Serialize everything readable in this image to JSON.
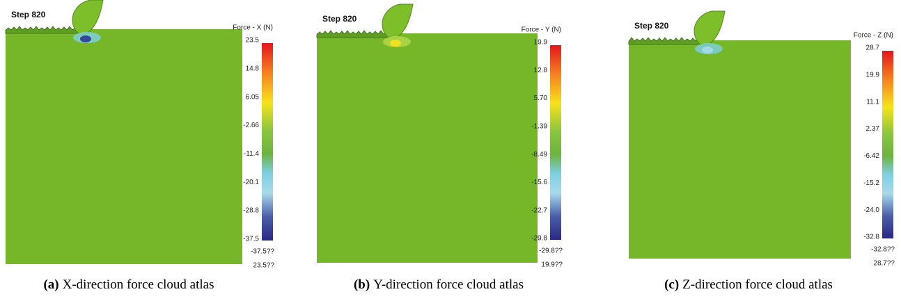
{
  "panels": [
    {
      "step": "Step 820",
      "legend_title": "Force - X (N)",
      "ticks": [
        "23.5",
        "14.8",
        "6.05",
        "-2.66",
        "-11.4",
        "-20.1",
        "-28.8",
        "-37.5"
      ],
      "min_label": "-37.5??",
      "max_label": "23.5??",
      "caption_tag": "(a)",
      "caption": "X-direction force cloud atlas"
    },
    {
      "step": "Step 820",
      "legend_title": "Force - Y (N)",
      "ticks": [
        "19.9",
        "12.8",
        "5.70",
        "-1.39",
        "-8.49",
        "-15.6",
        "-22.7",
        "-29.8"
      ],
      "min_label": "-29.8??",
      "max_label": "19.9??",
      "caption_tag": "(b)",
      "caption": "Y-direction force cloud atlas"
    },
    {
      "step": "Step 820",
      "legend_title": "Force - Z (N)",
      "ticks": [
        "28.7",
        "19.9",
        "11.1",
        "2.37",
        "-6.42",
        "-15.2",
        "-24.0",
        "-32.8"
      ],
      "min_label": "-32.8??",
      "max_label": "28.7??",
      "caption_tag": "(c)",
      "caption": "Z-direction force cloud atlas"
    }
  ]
}
